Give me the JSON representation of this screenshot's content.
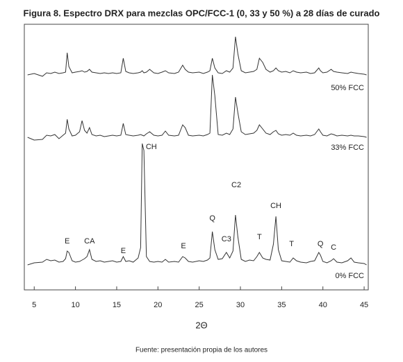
{
  "chart_data": {
    "type": "line",
    "title": "Figura 8. Espectro DRX para mezclas OPC/FCC-1 (0, 33 y 50 %) a 28 días de curado",
    "x_label": "2Θ",
    "caption": "Fuente: presentación propia de los autores",
    "xlim": [
      3.8,
      45.5
    ],
    "xticks": [
      5,
      10,
      15,
      20,
      25,
      30,
      35,
      40,
      45
    ],
    "x": [
      4.2,
      5,
      6,
      6.5,
      7,
      7.5,
      8,
      8.5,
      8.8,
      9.0,
      9.2,
      9.6,
      10,
      10.5,
      10.8,
      11.1,
      11.4,
      11.7,
      12,
      12.5,
      13,
      13.5,
      14,
      14.5,
      15,
      15.5,
      15.8,
      16.1,
      16.5,
      17,
      17.6,
      17.9,
      18.1,
      18.3,
      18.6,
      19,
      19.5,
      20,
      20.5,
      20.9,
      21.3,
      22,
      22.5,
      23.0,
      23.3,
      23.7,
      24.2,
      25,
      25.5,
      26,
      26.3,
      26.6,
      26.9,
      27.3,
      27.8,
      28.3,
      28.7,
      29.1,
      29.4,
      29.7,
      30.1,
      30.6,
      31.1,
      31.6,
      32.0,
      32.3,
      32.7,
      33.1,
      33.6,
      34.0,
      34.3,
      34.6,
      35.0,
      35.5,
      36.0,
      36.4,
      36.8,
      37.3,
      38,
      38.5,
      39.0,
      39.5,
      39.7,
      40.0,
      40.5,
      41.0,
      41.3,
      41.7,
      42.3,
      43,
      43.4,
      43.8,
      44.3,
      45,
      45.3
    ],
    "series": [
      {
        "name": "50% FCC",
        "color": "#333333",
        "values": [
          0,
          2,
          -2,
          3,
          2,
          4,
          2,
          3,
          4,
          32,
          12,
          3,
          4,
          5,
          6,
          4,
          5,
          8,
          4,
          3,
          2,
          3,
          2,
          3,
          2,
          3,
          24,
          5,
          3,
          2,
          3,
          4,
          6,
          3,
          4,
          8,
          3,
          2,
          4,
          6,
          3,
          2,
          4,
          14,
          8,
          4,
          3,
          4,
          2,
          4,
          6,
          24,
          10,
          3,
          2,
          6,
          4,
          10,
          55,
          30,
          6,
          3,
          4,
          5,
          8,
          24,
          18,
          8,
          4,
          6,
          10,
          6,
          4,
          5,
          3,
          6,
          4,
          3,
          4,
          2,
          3,
          10,
          6,
          3,
          4,
          8,
          5,
          4,
          3,
          2,
          4,
          3,
          2,
          1,
          0
        ]
      },
      {
        "name": "33% FCC",
        "color": "#333333",
        "values": [
          0,
          -4,
          -3,
          3,
          2,
          4,
          -2,
          3,
          6,
          26,
          12,
          2,
          3,
          8,
          24,
          10,
          6,
          14,
          4,
          2,
          3,
          1,
          2,
          3,
          2,
          3,
          20,
          4,
          3,
          2,
          3,
          4,
          3,
          2,
          5,
          8,
          3,
          2,
          3,
          9,
          3,
          2,
          3,
          18,
          14,
          3,
          2,
          3,
          2,
          4,
          6,
          90,
          60,
          4,
          3,
          6,
          4,
          12,
          58,
          35,
          8,
          4,
          5,
          6,
          10,
          18,
          12,
          6,
          4,
          8,
          10,
          5,
          3,
          4,
          3,
          6,
          3,
          2,
          3,
          2,
          4,
          12,
          8,
          3,
          2,
          5,
          4,
          2,
          3,
          2,
          3,
          2,
          2,
          1,
          0
        ]
      },
      {
        "name": "0% FCC",
        "color": "#333333",
        "values": [
          0,
          3,
          4,
          8,
          6,
          7,
          4,
          5,
          9,
          20,
          18,
          6,
          4,
          5,
          7,
          9,
          12,
          22,
          8,
          5,
          6,
          4,
          5,
          6,
          4,
          5,
          12,
          5,
          6,
          4,
          10,
          25,
          175,
          165,
          12,
          5,
          4,
          5,
          4,
          8,
          4,
          5,
          4,
          12,
          10,
          5,
          4,
          6,
          5,
          7,
          10,
          48,
          22,
          8,
          9,
          18,
          10,
          20,
          72,
          40,
          8,
          5,
          7,
          6,
          12,
          18,
          10,
          8,
          7,
          30,
          70,
          22,
          6,
          5,
          4,
          10,
          6,
          4,
          3,
          5,
          6,
          18,
          14,
          5,
          3,
          6,
          9,
          4,
          3,
          6,
          10,
          4,
          3,
          2,
          0
        ]
      }
    ],
    "annotations": [
      {
        "text": "E",
        "x": 9.0,
        "y": 34
      },
      {
        "text": "CA",
        "x": 11.7,
        "y": 34
      },
      {
        "text": "E",
        "x": 15.8,
        "y": 20
      },
      {
        "text": "CH",
        "x": 19.2,
        "y": 170
      },
      {
        "text": "E",
        "x": 23.1,
        "y": 27
      },
      {
        "text": "Q",
        "x": 26.6,
        "y": 67
      },
      {
        "text": "C3",
        "x": 28.3,
        "y": 37
      },
      {
        "text": "C2",
        "x": 29.5,
        "y": 115
      },
      {
        "text": "T",
        "x": 32.3,
        "y": 40
      },
      {
        "text": "CH",
        "x": 34.3,
        "y": 85
      },
      {
        "text": "T",
        "x": 36.2,
        "y": 30
      },
      {
        "text": "Q",
        "x": 39.7,
        "y": 30
      },
      {
        "text": "C",
        "x": 41.3,
        "y": 25
      }
    ]
  }
}
